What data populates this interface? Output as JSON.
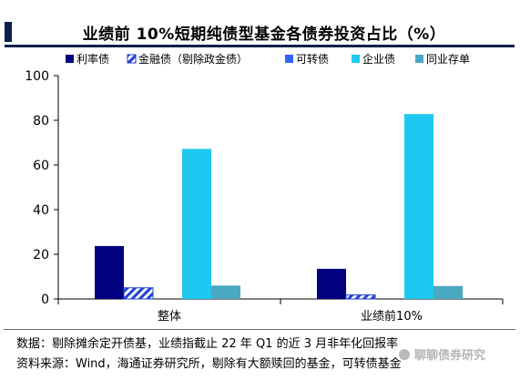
{
  "title": "业绩前 10%短期纯债型基金各债券投资占比（%）",
  "chart_data": {
    "type": "bar",
    "categories": [
      "整体",
      "业绩前10%"
    ],
    "series": [
      {
        "name": "利率债",
        "values": [
          23.7,
          13.5
        ],
        "color": "#000080",
        "pattern": "solid"
      },
      {
        "name": "金融债（剔除政金债）",
        "values": [
          5.0,
          1.8
        ],
        "color": "#1f3fd6",
        "pattern": "hatch"
      },
      {
        "name": "可转债",
        "values": [
          0.0,
          0.0
        ],
        "color": "#3366ff",
        "pattern": "solid"
      },
      {
        "name": "企业债",
        "values": [
          67.2,
          82.8
        ],
        "color": "#1ec8f0",
        "pattern": "solid"
      },
      {
        "name": "同业存单",
        "values": [
          6.0,
          5.8
        ],
        "color": "#4aa8c0",
        "pattern": "solid"
      }
    ],
    "yticks": [
      0,
      20,
      40,
      60,
      80,
      100
    ],
    "ylim": [
      0,
      100
    ],
    "grid": false,
    "legend": "top"
  },
  "notes": [
    "数据：剔除摊余定开债基，业绩指截止 22 年 Q1 的近 3 月非年化回报率",
    "资料来源：Wind，海通证券研究所，剔除有大额赎回的基金，可转债基金"
  ],
  "watermark": "聊聊债券研究"
}
